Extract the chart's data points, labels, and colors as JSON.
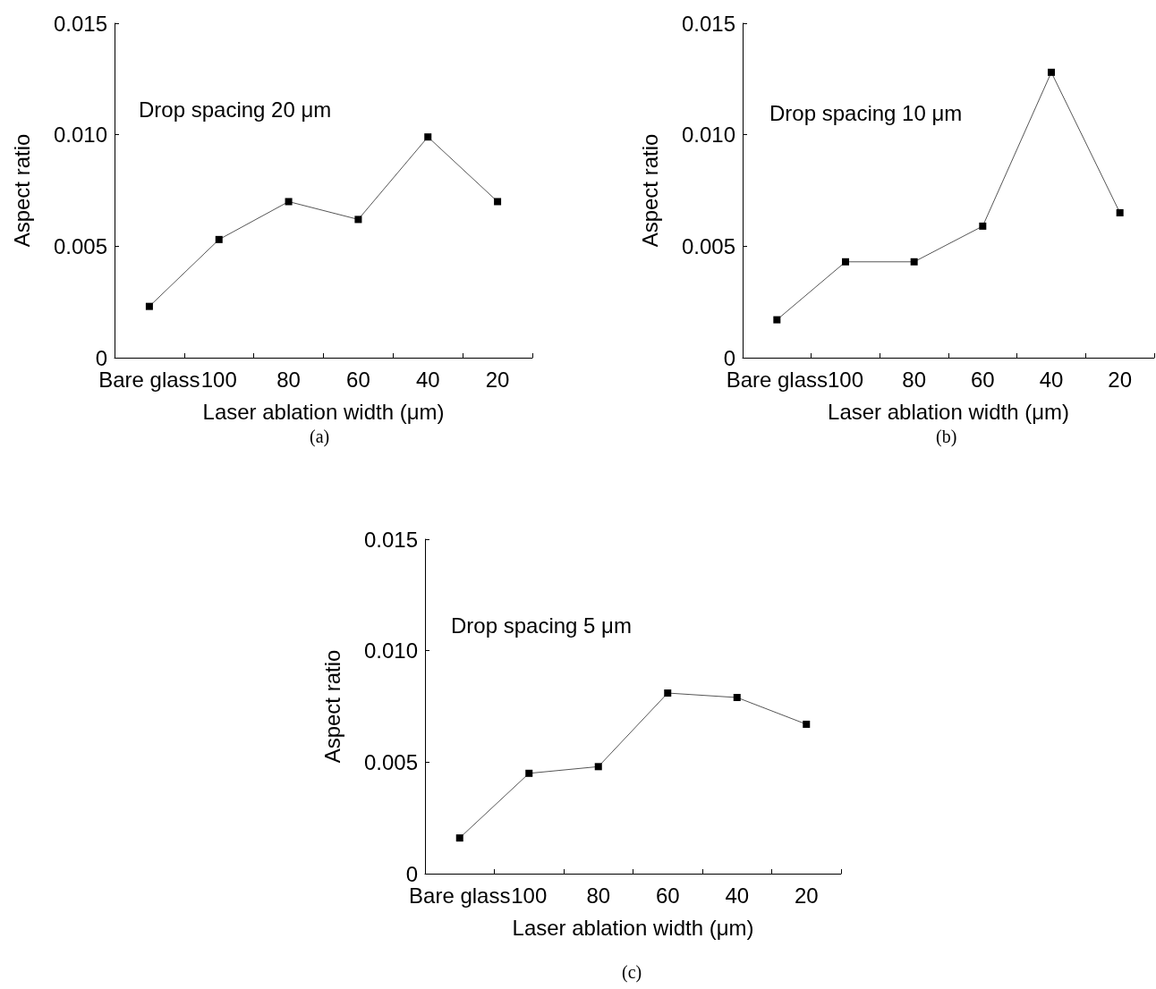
{
  "chart_data": [
    {
      "type": "line",
      "categories": [
        "Bare glass",
        "100",
        "80",
        "60",
        "40",
        "20"
      ],
      "values": [
        0.0023,
        0.0053,
        0.007,
        0.0062,
        0.0099,
        0.007
      ],
      "color": "#000000",
      "marker": "square",
      "xlabel": "Laser ablation width (μm)",
      "ylabel": "Aspect ratio",
      "ylim": [
        0,
        0.015
      ],
      "yticks": [
        {
          "value": 0,
          "label": "0"
        },
        {
          "value": 0.005,
          "label": "0.005"
        },
        {
          "value": 0.01,
          "label": "0.010"
        },
        {
          "value": 0.015,
          "label": "0.015"
        }
      ],
      "annotations": [
        "Drop spacing 20 μm",
        "(a)"
      ]
    },
    {
      "type": "line",
      "categories": [
        "Bare glass",
        "100",
        "80",
        "60",
        "40",
        "20"
      ],
      "values": [
        0.0017,
        0.0043,
        0.0043,
        0.0059,
        0.0128,
        0.0065
      ],
      "color": "#000000",
      "marker": "square",
      "xlabel": "Laser ablation width (μm)",
      "ylabel": "Aspect ratio",
      "ylim": [
        0,
        0.015
      ],
      "yticks": [
        {
          "value": 0,
          "label": "0"
        },
        {
          "value": 0.005,
          "label": "0.005"
        },
        {
          "value": 0.01,
          "label": "0.010"
        },
        {
          "value": 0.015,
          "label": "0.015"
        }
      ],
      "annotations": [
        "Drop spacing 10 μm",
        "(b)"
      ]
    },
    {
      "type": "line",
      "categories": [
        "Bare glass",
        "100",
        "80",
        "60",
        "40",
        "20"
      ],
      "values": [
        0.0016,
        0.0045,
        0.0048,
        0.0081,
        0.0079,
        0.0067
      ],
      "color": "#000000",
      "marker": "square",
      "xlabel": "Laser ablation width (μm)",
      "ylabel": "Aspect ratio",
      "ylim": [
        0,
        0.015
      ],
      "yticks": [
        {
          "value": 0,
          "label": "0"
        },
        {
          "value": 0.005,
          "label": "0.005"
        },
        {
          "value": 0.01,
          "label": "0.010"
        },
        {
          "value": 0.015,
          "label": "0.015"
        }
      ],
      "annotations": [
        "Drop spacing 5 μm",
        "(c)"
      ]
    }
  ]
}
